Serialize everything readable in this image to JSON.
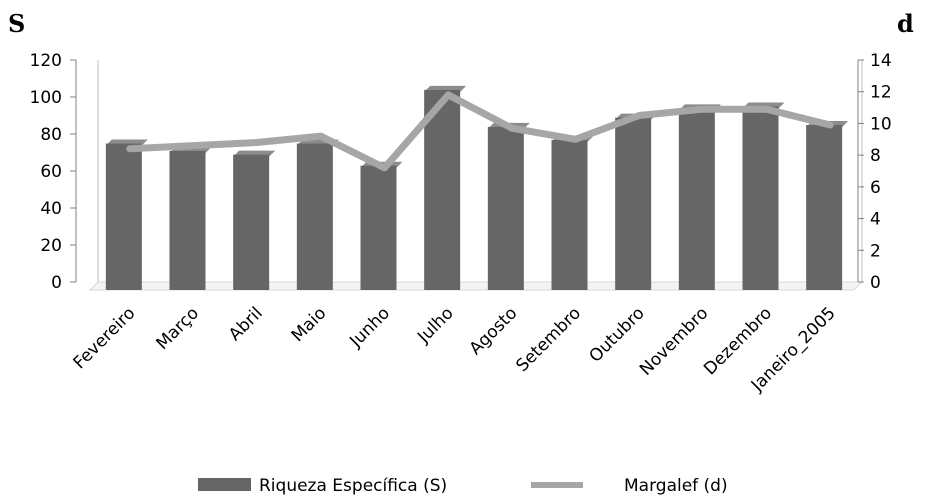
{
  "chart_data": {
    "type": "bar",
    "categories": [
      "Fevereiro",
      "Março",
      "Abril",
      "Maio",
      "Junho",
      "Julho",
      "Agosto",
      "Setembro",
      "Outubro",
      "Novembro",
      "Dezembro",
      "Janeiro_2005"
    ],
    "series": [
      {
        "name": "Riqueza Específica (S)",
        "type": "bar",
        "axis": "left",
        "color": "#666666",
        "values": [
          77,
          73,
          71,
          77,
          65,
          106,
          86,
          79,
          91,
          96,
          97,
          87
        ]
      },
      {
        "name": "Margalef (d)",
        "type": "line",
        "axis": "right",
        "color": "#a6a6a6",
        "values": [
          8.4,
          8.6,
          8.8,
          9.2,
          7.2,
          11.8,
          9.7,
          9.0,
          10.5,
          10.9,
          10.9,
          9.9
        ]
      }
    ],
    "ylabel_left": "S",
    "ylabel_right": "d",
    "ylim_left": [
      0,
      120
    ],
    "yticks_left": [
      "0",
      "20",
      "40",
      "60",
      "80",
      "100",
      "120"
    ],
    "ylim_right": [
      0,
      14
    ],
    "yticks_right": [
      "0",
      "2",
      "4",
      "6",
      "8",
      "10",
      "12",
      "14"
    ],
    "grid": false,
    "legend_position": "bottom"
  }
}
